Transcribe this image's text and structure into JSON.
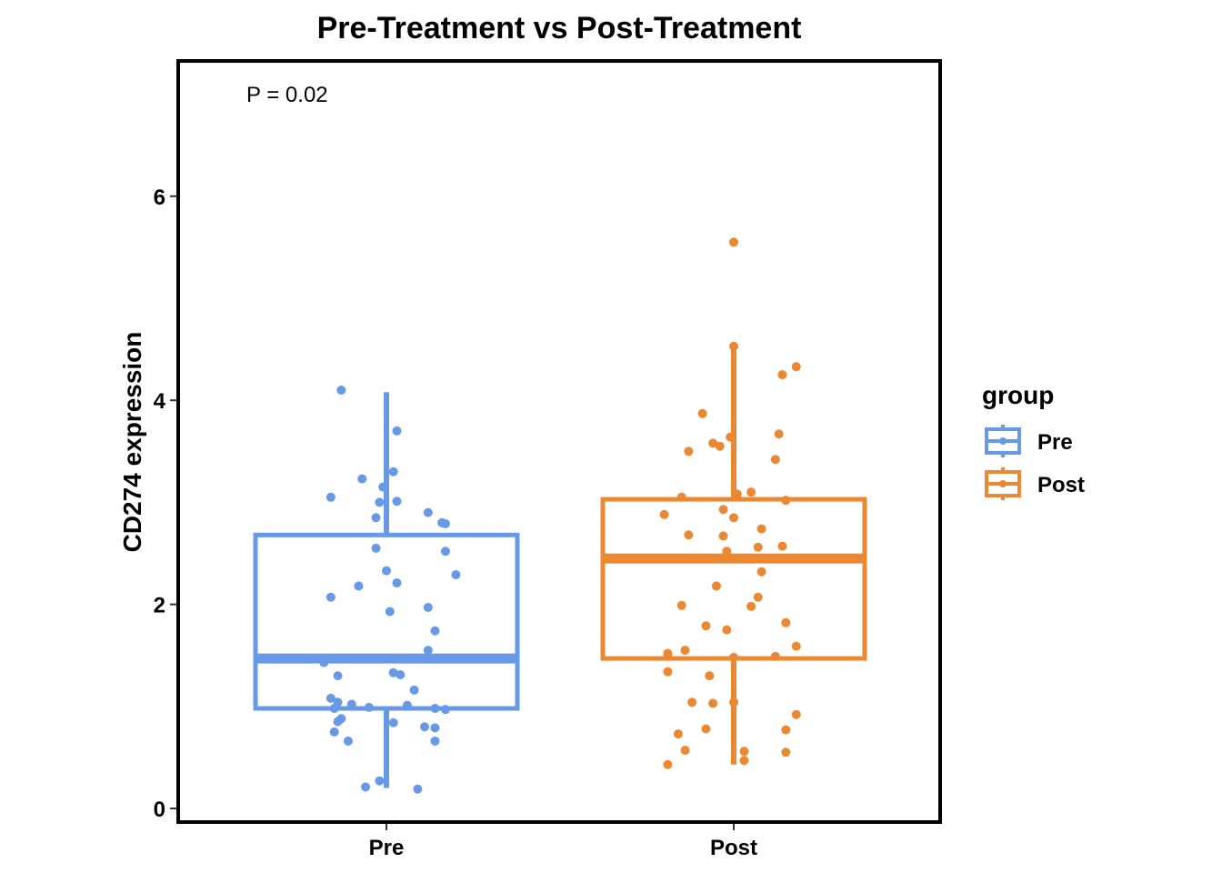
{
  "chart_data": {
    "type": "box",
    "title": "Pre-Treatment vs Post-Treatment",
    "xlabel": "",
    "ylabel": "CD274 expression",
    "categories": [
      "Pre",
      "Post"
    ],
    "ylim": [
      -0.1,
      7.3
    ],
    "yticks": [
      0,
      2,
      4,
      6
    ],
    "grid": false,
    "legend_position": "right",
    "annotation": "P = 0.02",
    "legend": {
      "title": "group",
      "items": [
        {
          "label": "Pre",
          "color": "#6699E6"
        },
        {
          "label": "Post",
          "color": "#EB8833"
        }
      ]
    },
    "series": [
      {
        "name": "Pre",
        "color": "#6699E6",
        "box": {
          "min": 0.2,
          "q1": 0.98,
          "median": 1.47,
          "q3": 2.68,
          "max": 4.08
        },
        "points": [
          {
            "x": -0.13,
            "y": 4.1
          },
          {
            "x": 0.03,
            "y": 3.7
          },
          {
            "x": 0.02,
            "y": 3.3
          },
          {
            "x": -0.07,
            "y": 3.23
          },
          {
            "x": -0.16,
            "y": 3.05
          },
          {
            "x": -0.01,
            "y": 3.15
          },
          {
            "x": -0.02,
            "y": 3.0
          },
          {
            "x": 0.03,
            "y": 3.01
          },
          {
            "x": -0.03,
            "y": 2.85
          },
          {
            "x": 0.12,
            "y": 2.9
          },
          {
            "x": 0.16,
            "y": 2.8
          },
          {
            "x": 0.17,
            "y": 2.79
          },
          {
            "x": -0.03,
            "y": 2.55
          },
          {
            "x": 0.17,
            "y": 2.52
          },
          {
            "x": 0.0,
            "y": 2.33
          },
          {
            "x": 0.2,
            "y": 2.29
          },
          {
            "x": 0.03,
            "y": 2.21
          },
          {
            "x": -0.08,
            "y": 2.18
          },
          {
            "x": -0.16,
            "y": 2.07
          },
          {
            "x": 0.12,
            "y": 1.97
          },
          {
            "x": 0.01,
            "y": 1.93
          },
          {
            "x": 0.14,
            "y": 1.74
          },
          {
            "x": 0.12,
            "y": 1.55
          },
          {
            "x": -0.18,
            "y": 1.43
          },
          {
            "x": -0.14,
            "y": 1.3
          },
          {
            "x": 0.02,
            "y": 1.33
          },
          {
            "x": 0.04,
            "y": 1.31
          },
          {
            "x": 0.08,
            "y": 1.16
          },
          {
            "x": -0.16,
            "y": 1.08
          },
          {
            "x": -0.14,
            "y": 1.04
          },
          {
            "x": -0.1,
            "y": 1.02
          },
          {
            "x": -0.15,
            "y": 0.98
          },
          {
            "x": -0.05,
            "y": 0.99
          },
          {
            "x": 0.06,
            "y": 1.01
          },
          {
            "x": 0.14,
            "y": 0.98
          },
          {
            "x": 0.17,
            "y": 0.97
          },
          {
            "x": -0.13,
            "y": 0.88
          },
          {
            "x": -0.14,
            "y": 0.85
          },
          {
            "x": 0.02,
            "y": 0.84
          },
          {
            "x": 0.11,
            "y": 0.8
          },
          {
            "x": 0.14,
            "y": 0.79
          },
          {
            "x": -0.15,
            "y": 0.75
          },
          {
            "x": -0.11,
            "y": 0.66
          },
          {
            "x": 0.14,
            "y": 0.66
          },
          {
            "x": -0.02,
            "y": 0.27
          },
          {
            "x": -0.06,
            "y": 0.21
          },
          {
            "x": 0.09,
            "y": 0.19
          }
        ]
      },
      {
        "name": "Post",
        "color": "#EB8833",
        "box": {
          "min": 0.43,
          "q1": 1.47,
          "median": 2.45,
          "q3": 3.03,
          "max": 4.55
        },
        "points": [
          {
            "x": 0.0,
            "y": 5.55
          },
          {
            "x": 0.0,
            "y": 4.53
          },
          {
            "x": 0.18,
            "y": 4.33
          },
          {
            "x": 0.14,
            "y": 4.25
          },
          {
            "x": -0.09,
            "y": 3.87
          },
          {
            "x": 0.13,
            "y": 3.67
          },
          {
            "x": -0.01,
            "y": 3.64
          },
          {
            "x": -0.06,
            "y": 3.58
          },
          {
            "x": -0.04,
            "y": 3.55
          },
          {
            "x": -0.13,
            "y": 3.5
          },
          {
            "x": 0.12,
            "y": 3.42
          },
          {
            "x": 0.05,
            "y": 3.1
          },
          {
            "x": 0.01,
            "y": 3.08
          },
          {
            "x": -0.15,
            "y": 3.05
          },
          {
            "x": 0.15,
            "y": 3.02
          },
          {
            "x": -0.03,
            "y": 2.93
          },
          {
            "x": -0.2,
            "y": 2.88
          },
          {
            "x": 0.0,
            "y": 2.85
          },
          {
            "x": 0.08,
            "y": 2.74
          },
          {
            "x": -0.13,
            "y": 2.68
          },
          {
            "x": -0.03,
            "y": 2.67
          },
          {
            "x": 0.07,
            "y": 2.56
          },
          {
            "x": 0.14,
            "y": 2.57
          },
          {
            "x": -0.02,
            "y": 2.52
          },
          {
            "x": 0.08,
            "y": 2.32
          },
          {
            "x": -0.05,
            "y": 2.18
          },
          {
            "x": 0.07,
            "y": 2.07
          },
          {
            "x": -0.15,
            "y": 1.99
          },
          {
            "x": 0.05,
            "y": 1.98
          },
          {
            "x": 0.15,
            "y": 1.82
          },
          {
            "x": -0.08,
            "y": 1.79
          },
          {
            "x": -0.02,
            "y": 1.75
          },
          {
            "x": 0.18,
            "y": 1.59
          },
          {
            "x": -0.14,
            "y": 1.55
          },
          {
            "x": -0.19,
            "y": 1.52
          },
          {
            "x": -0.19,
            "y": 1.5
          },
          {
            "x": 0.0,
            "y": 1.48
          },
          {
            "x": 0.12,
            "y": 1.49
          },
          {
            "x": -0.19,
            "y": 1.34
          },
          {
            "x": -0.07,
            "y": 1.3
          },
          {
            "x": -0.12,
            "y": 1.04
          },
          {
            "x": -0.06,
            "y": 1.03
          },
          {
            "x": 0.0,
            "y": 1.04
          },
          {
            "x": 0.18,
            "y": 0.92
          },
          {
            "x": -0.08,
            "y": 0.78
          },
          {
            "x": 0.15,
            "y": 0.77
          },
          {
            "x": -0.16,
            "y": 0.73
          },
          {
            "x": -0.14,
            "y": 0.57
          },
          {
            "x": 0.03,
            "y": 0.56
          },
          {
            "x": 0.15,
            "y": 0.55
          },
          {
            "x": 0.03,
            "y": 0.47
          },
          {
            "x": -0.19,
            "y": 0.43
          }
        ]
      }
    ]
  }
}
